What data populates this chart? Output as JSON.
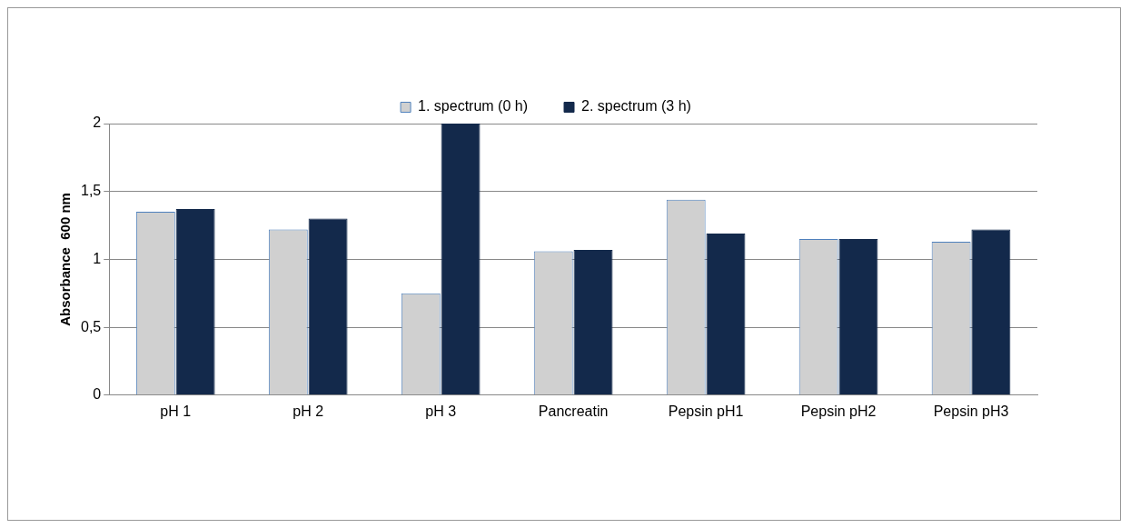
{
  "chart_data": {
    "type": "bar",
    "ylabel": "Absorbance  600 nm",
    "categories": [
      "pH 1",
      "pH 2",
      "pH 3",
      "Pancreatin",
      "Pepsin pH1",
      "Pepsin pH2",
      "Pepsin pH3"
    ],
    "series": [
      {
        "name": "1. spectrum (0 h)",
        "color": "#d0d0d0",
        "values": [
          1.35,
          1.22,
          0.75,
          1.06,
          1.44,
          1.15,
          1.13
        ]
      },
      {
        "name": "2. spectrum (3 h)",
        "color": "#13294b",
        "values": [
          1.37,
          1.3,
          2.0,
          1.07,
          1.19,
          1.15,
          1.22
        ]
      }
    ],
    "ylim": [
      0,
      2
    ],
    "yticks": [
      0,
      {
        "value": 0.5,
        "label": "0,5"
      },
      1,
      {
        "value": 1.5,
        "label": "1,5"
      },
      2
    ],
    "grid": "y",
    "legend": "top"
  }
}
